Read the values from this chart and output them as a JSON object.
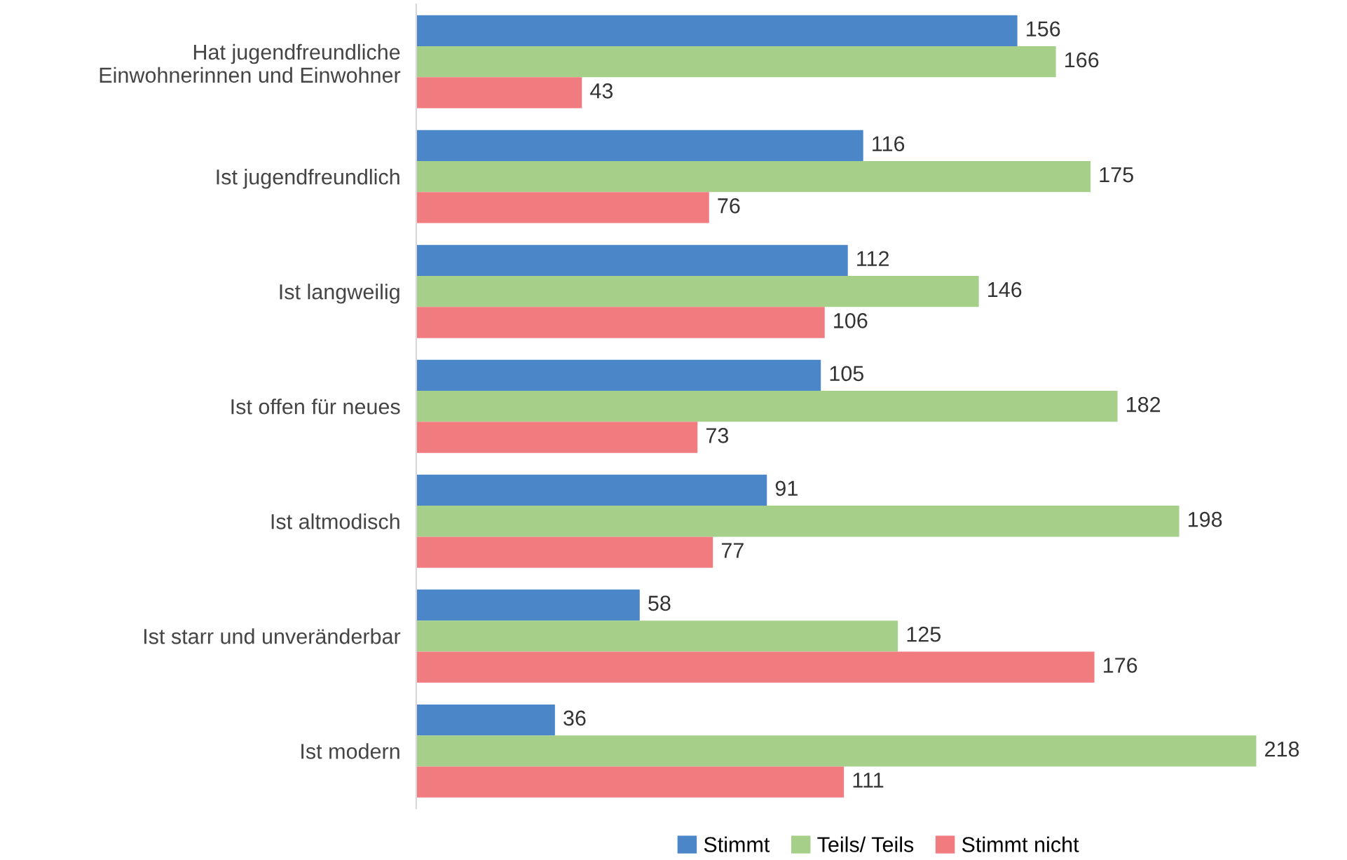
{
  "chart_data": {
    "type": "bar",
    "orientation": "horizontal",
    "categories": [
      "Hat jugendfreundliche\nEinwohnerinnen und Einwohner",
      "Ist jugendfreundlich",
      "Ist langweilig",
      "Ist offen für neues",
      "Ist altmodisch",
      "Ist starr und unveränderbar",
      "Ist modern"
    ],
    "series": [
      {
        "name": "Stimmt",
        "color": "#4a86c8",
        "values": [
          156,
          116,
          112,
          105,
          91,
          58,
          36
        ]
      },
      {
        "name": "Teils/ Teils",
        "color": "#a6d08a",
        "values": [
          166,
          175,
          146,
          182,
          198,
          125,
          218
        ]
      },
      {
        "name": "Stimmt nicht",
        "color": "#f07c80",
        "values": [
          43,
          76,
          106,
          73,
          77,
          176,
          111
        ]
      }
    ],
    "data_labels": true,
    "legend": "bottom",
    "grid": false
  }
}
